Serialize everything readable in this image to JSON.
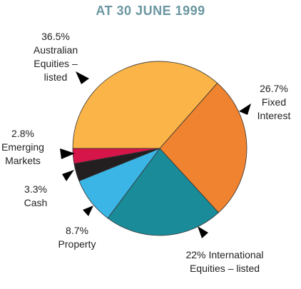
{
  "chart_data": {
    "type": "pie",
    "title": "AT 30 JUNE 1999",
    "categories": [
      "Australian Equities – listed",
      "Fixed Interest",
      "International Equities – listed",
      "Property",
      "Cash",
      "Emerging Markets"
    ],
    "values": [
      36.5,
      26.7,
      22,
      8.7,
      3.3,
      2.8
    ],
    "value_labels": [
      "36.5%",
      "26.7%",
      "22%",
      "8.7%",
      "3.3%",
      "2.8%"
    ],
    "colors": [
      "#fbb447",
      "#f0832f",
      "#1a8c99",
      "#3bb5e5",
      "#231f20",
      "#d6154a"
    ]
  }
}
